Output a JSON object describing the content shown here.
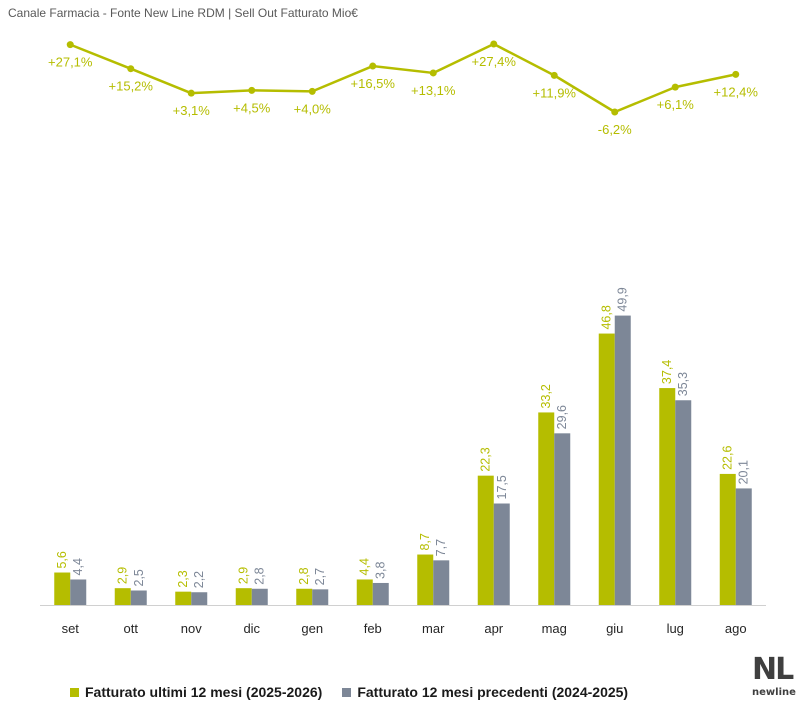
{
  "header": {
    "title": "Canale Farmacia - Fonte New Line RDM | Sell Out Fatturato Mio€"
  },
  "colors": {
    "current": "#b5bd00",
    "previous": "#7d8797",
    "line": "#b5bd00",
    "axis": "#d0d0d0"
  },
  "chart_data": [
    {
      "type": "line",
      "name": "growth-line",
      "categories": [
        "set",
        "ott",
        "nov",
        "dic",
        "gen",
        "feb",
        "mar",
        "apr",
        "mag",
        "giu",
        "lug",
        "ago"
      ],
      "values": [
        27.1,
        15.2,
        3.1,
        4.5,
        4.0,
        16.5,
        13.1,
        27.4,
        11.9,
        -6.2,
        6.1,
        12.4
      ],
      "labels": [
        "+27,1%",
        "+15,2%",
        "+3,1%",
        "+4,5%",
        "+4,0%",
        "+16,5%",
        "+13,1%",
        "+27,4%",
        "+11,9%",
        "-6,2%",
        "+6,1%",
        "+12,4%"
      ]
    },
    {
      "type": "bar",
      "name": "sell-out",
      "categories": [
        "set",
        "ott",
        "nov",
        "dic",
        "gen",
        "feb",
        "mar",
        "apr",
        "mag",
        "giu",
        "lug",
        "ago"
      ],
      "series": [
        {
          "name": "Fatturato ultimi 12 mesi (2025-2026)",
          "values": [
            5.6,
            2.9,
            2.3,
            2.9,
            2.8,
            4.4,
            8.7,
            22.3,
            33.2,
            46.8,
            37.4,
            22.6
          ],
          "labels": [
            "5,6",
            "2,9",
            "2,3",
            "2,9",
            "2,8",
            "4,4",
            "8,7",
            "22,3",
            "33,2",
            "46,8",
            "37,4",
            "22,6"
          ]
        },
        {
          "name": "Fatturato 12 mesi precedenti (2024-2025)",
          "values": [
            4.4,
            2.5,
            2.2,
            2.8,
            2.7,
            3.8,
            7.7,
            17.5,
            29.6,
            49.9,
            35.3,
            20.1
          ],
          "labels": [
            "4,4",
            "2,5",
            "2,2",
            "2,8",
            "2,7",
            "3,8",
            "7,7",
            "17,5",
            "29,6",
            "49,9",
            "35,3",
            "20,1"
          ]
        }
      ],
      "legend": "bottom"
    }
  ],
  "logo": {
    "mark": "NL",
    "word": "newline"
  }
}
